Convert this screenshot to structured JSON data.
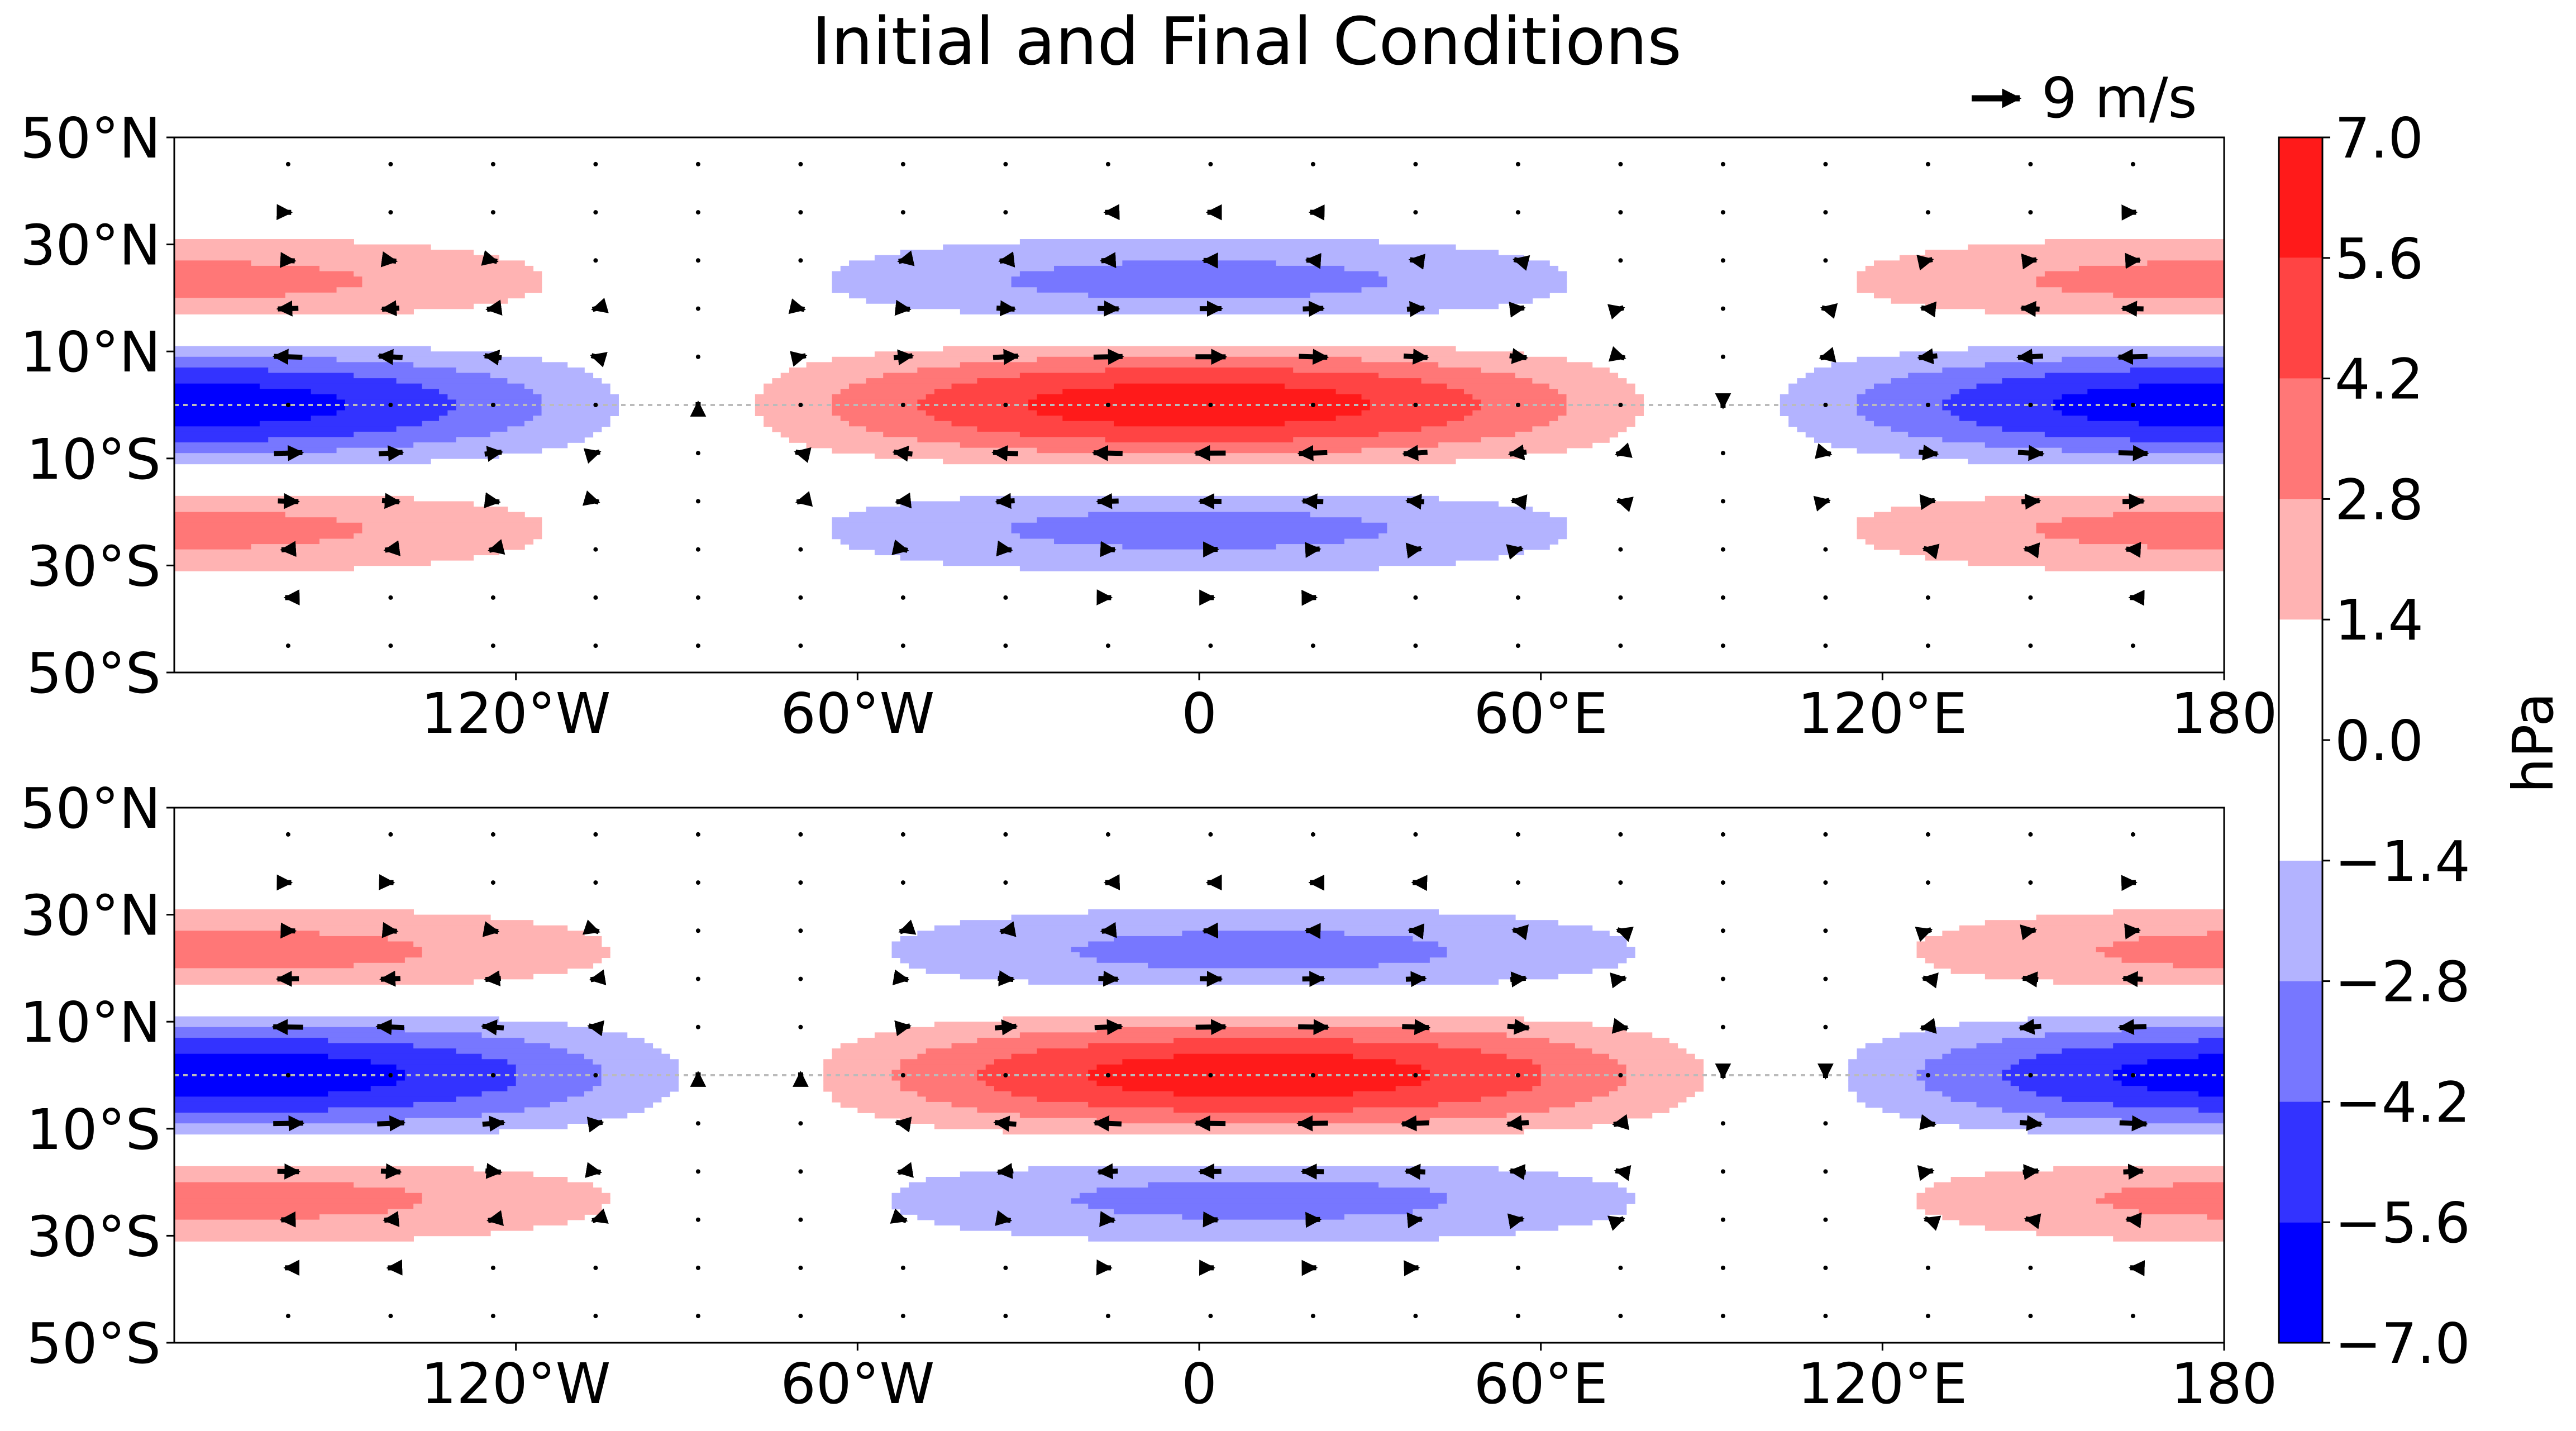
{
  "figure": {
    "title": "Initial and Final Conditions",
    "quiver_key_label": "9 m/s",
    "colorbar_label": "hPa"
  },
  "colorbar": {
    "levels": [
      -7.0,
      -5.6,
      -4.2,
      -2.8,
      -1.4,
      1.4,
      2.8,
      4.2,
      5.6,
      7.0
    ],
    "tick_labels": [
      "7.0",
      "5.6",
      "4.2",
      "2.8",
      "1.4",
      "0.0",
      "−1.4",
      "−2.8",
      "−4.2",
      "−5.6",
      "−7.0"
    ],
    "tick_values": [
      7.0,
      5.6,
      4.2,
      2.8,
      1.4,
      0.0,
      -1.4,
      -2.8,
      -4.2,
      -5.6,
      -7.0
    ],
    "colors": [
      "#0000ff",
      "#3333ff",
      "#7777ff",
      "#b3b3ff",
      "#ffffff",
      "#ffb3b3",
      "#ff7777",
      "#ff4444",
      "#ff1a1a"
    ]
  },
  "axes_ticks": {
    "x_labels": [
      "120°W",
      "60°W",
      "0",
      "60°E",
      "120°E",
      "180"
    ],
    "x_values": [
      -120,
      -60,
      0,
      60,
      120,
      180
    ],
    "y_labels": [
      "50°N",
      "30°N",
      "10°N",
      "10°S",
      "30°S",
      "50°S"
    ],
    "y_values": [
      50,
      30,
      10,
      -10,
      -30,
      -50
    ]
  },
  "chart_data": [
    {
      "type": "contourf+quiver",
      "panel": "top",
      "title": "",
      "xlim": [
        -180,
        180
      ],
      "ylim": [
        -50,
        50
      ],
      "wave_center_lon": 0,
      "equatorial_amplitude_hPa": 6.5,
      "offequator_amplitude_hPa": 3.4,
      "offequator_lat": 23,
      "wind_max_ms": 9
    },
    {
      "type": "contourf+quiver",
      "panel": "bottom",
      "title": "",
      "xlim": [
        -180,
        180
      ],
      "ylim": [
        -50,
        50
      ],
      "wave_center_lon": 11,
      "equatorial_amplitude_hPa": 6.5,
      "offequator_amplitude_hPa": 3.4,
      "offequator_lat": 23,
      "wind_max_ms": 9
    }
  ]
}
